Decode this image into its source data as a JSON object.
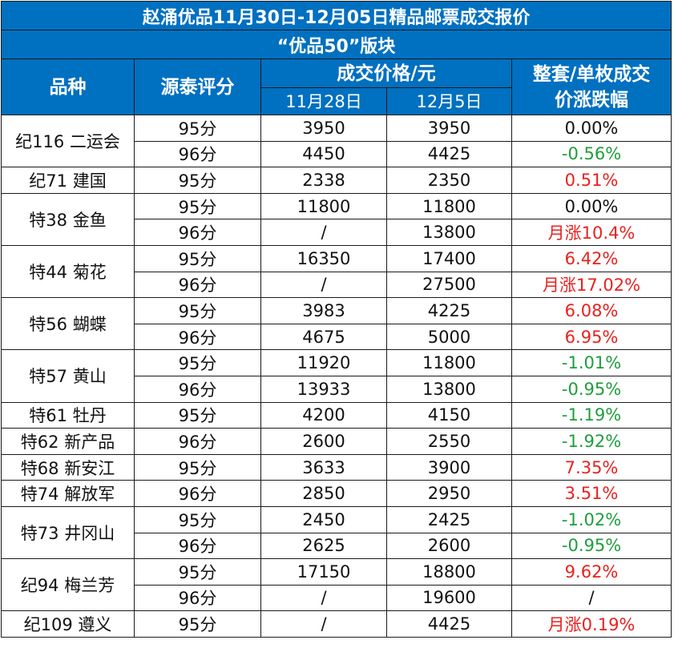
{
  "title": "赵涌优品11月30日-12月05日精品邮票成交报价",
  "subtitle": "“优品50”版块",
  "headers": {
    "variety": "品种",
    "score": "源泰评分",
    "price": "成交价格/元",
    "date1": "11月28日",
    "date2": "12月5日",
    "change_line1": "整套/单枚成交",
    "change_line2": "价涨跌幅"
  },
  "groups": [
    {
      "name": "纪116 二运会",
      "rows": [
        {
          "score": "95分",
          "p1": "3950",
          "p2": "3950",
          "change": "0.00%",
          "trend": "zero"
        },
        {
          "score": "96分",
          "p1": "4450",
          "p2": "4425",
          "change": "-0.56%",
          "trend": "neg"
        }
      ]
    },
    {
      "name": "纪71 建国",
      "rows": [
        {
          "score": "95分",
          "p1": "2338",
          "p2": "2350",
          "change": "0.51%",
          "trend": "pos"
        }
      ]
    },
    {
      "name": "特38 金鱼",
      "rows": [
        {
          "score": "95分",
          "p1": "11800",
          "p2": "11800",
          "change": "0.00%",
          "trend": "zero"
        },
        {
          "score": "96分",
          "p1": "/",
          "p2": "13800",
          "change": "月涨10.4%",
          "trend": "pos"
        }
      ]
    },
    {
      "name": "特44 菊花",
      "rows": [
        {
          "score": "95分",
          "p1": "16350",
          "p2": "17400",
          "change": "6.42%",
          "trend": "pos"
        },
        {
          "score": "96分",
          "p1": "/",
          "p2": "27500",
          "change": "月涨17.02%",
          "trend": "pos"
        }
      ]
    },
    {
      "name": "特56 蝴蝶",
      "rows": [
        {
          "score": "95分",
          "p1": "3983",
          "p2": "4225",
          "change": "6.08%",
          "trend": "pos"
        },
        {
          "score": "96分",
          "p1": "4675",
          "p2": "5000",
          "change": "6.95%",
          "trend": "pos"
        }
      ]
    },
    {
      "name": "特57 黄山",
      "rows": [
        {
          "score": "95分",
          "p1": "11920",
          "p2": "11800",
          "change": "-1.01%",
          "trend": "neg"
        },
        {
          "score": "96分",
          "p1": "13933",
          "p2": "13800",
          "change": "-0.95%",
          "trend": "neg"
        }
      ]
    },
    {
      "name": "特61 牡丹",
      "rows": [
        {
          "score": "95分",
          "p1": "4200",
          "p2": "4150",
          "change": "-1.19%",
          "trend": "neg"
        }
      ]
    },
    {
      "name": "特62 新产品",
      "rows": [
        {
          "score": "96分",
          "p1": "2600",
          "p2": "2550",
          "change": "-1.92%",
          "trend": "neg"
        }
      ]
    },
    {
      "name": "特68 新安江",
      "rows": [
        {
          "score": "95分",
          "p1": "3633",
          "p2": "3900",
          "change": "7.35%",
          "trend": "pos"
        }
      ]
    },
    {
      "name": "特74 解放军",
      "rows": [
        {
          "score": "96分",
          "p1": "2850",
          "p2": "2950",
          "change": "3.51%",
          "trend": "pos"
        }
      ]
    },
    {
      "name": "特73 井冈山",
      "rows": [
        {
          "score": "95分",
          "p1": "2450",
          "p2": "2425",
          "change": "-1.02%",
          "trend": "neg"
        },
        {
          "score": "96分",
          "p1": "2625",
          "p2": "2600",
          "change": "-0.95%",
          "trend": "neg"
        }
      ]
    },
    {
      "name": "纪94 梅兰芳",
      "rows": [
        {
          "score": "95分",
          "p1": "17150",
          "p2": "18800",
          "change": "9.62%",
          "trend": "pos"
        },
        {
          "score": "96分",
          "p1": "/",
          "p2": "19600",
          "change": "/",
          "trend": "zero"
        }
      ]
    },
    {
      "name": "纪109 遵义",
      "rows": [
        {
          "score": "95分",
          "p1": "/",
          "p2": "4425",
          "change": "月涨0.19%",
          "trend": "pos"
        }
      ]
    }
  ],
  "colors": {
    "header_bg": "#0070c0",
    "up": "#e8221f",
    "down": "#1f9e3c"
  }
}
